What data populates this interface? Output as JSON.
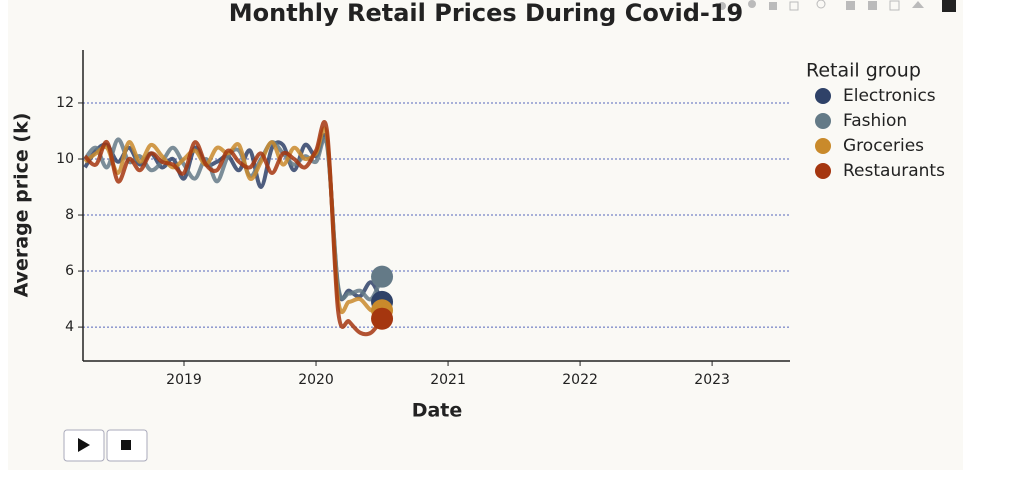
{
  "chart_data": {
    "type": "line",
    "title": "Monthly Retail Prices During Covid-19",
    "x_label": "Date",
    "y_label": "Average price (k)",
    "legend_title": "Retail group",
    "legend_position": "right",
    "x": [
      2018.25,
      2018.3333,
      2018.4167,
      2018.5,
      2018.5833,
      2018.6667,
      2018.75,
      2018.8333,
      2018.9167,
      2019.0,
      2019.0833,
      2019.1667,
      2019.25,
      2019.3333,
      2019.4167,
      2019.5,
      2019.5833,
      2019.6667,
      2019.75,
      2019.8333,
      2019.9167,
      2020.0,
      2020.0833,
      2020.1667,
      2020.25,
      2020.3333,
      2020.4167,
      2020.5
    ],
    "series": [
      {
        "name": "Electronics",
        "color": "#2f4268",
        "values": [
          9.7,
          10.3,
          10.5,
          9.9,
          10.4,
          9.8,
          10.2,
          9.7,
          10.0,
          9.3,
          10.4,
          9.8,
          9.9,
          10.1,
          9.6,
          10.3,
          9.0,
          10.4,
          10.5,
          9.6,
          10.5,
          10.1,
          10.6,
          5.4,
          5.3,
          5.1,
          5.6,
          4.9
        ]
      },
      {
        "name": "Fashion",
        "color": "#647a87",
        "values": [
          10.0,
          10.4,
          9.7,
          10.7,
          9.9,
          10.1,
          9.6,
          9.9,
          10.4,
          9.8,
          9.3,
          10.0,
          9.2,
          10.1,
          10.3,
          9.4,
          10.0,
          10.6,
          10.2,
          9.8,
          10.1,
          9.9,
          10.5,
          5.5,
          5.2,
          5.3,
          5.0,
          5.8
        ]
      },
      {
        "name": "Groceries",
        "color": "#c98a2b",
        "values": [
          9.9,
          10.2,
          10.4,
          9.5,
          10.6,
          9.9,
          10.5,
          10.1,
          9.7,
          10.0,
          10.3,
          9.8,
          10.4,
          10.2,
          10.5,
          9.3,
          9.9,
          10.6,
          9.8,
          10.4,
          10.0,
          10.2,
          10.8,
          5.0,
          4.9,
          5.0,
          4.6,
          4.6
        ]
      },
      {
        "name": "Restaurants",
        "color": "#a5360f",
        "values": [
          10.1,
          9.8,
          10.6,
          9.2,
          10.0,
          9.6,
          10.2,
          9.9,
          9.8,
          9.5,
          10.6,
          9.8,
          9.6,
          10.3,
          9.9,
          9.7,
          10.2,
          9.5,
          10.2,
          10.0,
          9.7,
          10.3,
          11.0,
          4.6,
          4.2,
          3.8,
          3.8,
          4.3
        ]
      }
    ],
    "xlim": [
      2018.235,
      2023.59
    ],
    "xticks": [
      2019,
      2020,
      2021,
      2022,
      2023
    ],
    "ylim": [
      2.79,
      13.89
    ],
    "yticks": [
      4,
      6,
      8,
      10,
      12
    ],
    "grid": true
  }
}
